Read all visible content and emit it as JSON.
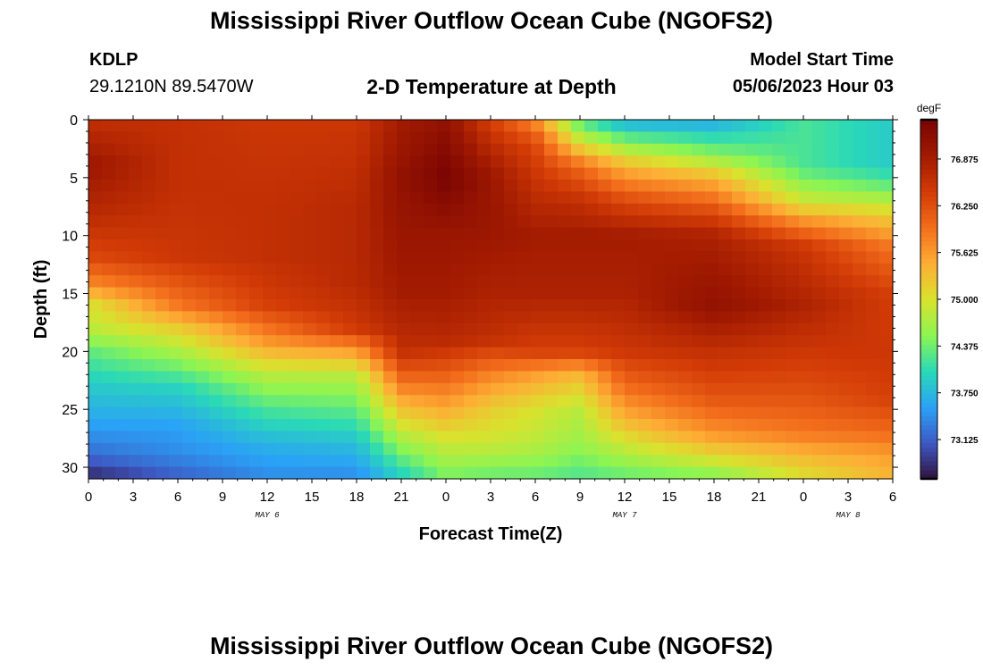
{
  "page": {
    "title": "Mississippi River Outflow Ocean Cube (NGOFS2)",
    "station": "KDLP",
    "coords": "29.1210N  89.5470W",
    "subtitle": "2-D Temperature at Depth",
    "model_start_label": "Model Start Time",
    "model_start_value": "05/06/2023 Hour 03",
    "repeat_title": "Mississippi River Outflow Ocean Cube (NGOFS2)"
  },
  "chart_data": {
    "type": "heatmap",
    "title": "2-D Temperature at Depth",
    "xlabel": "Forecast Time(Z)",
    "ylabel": "Depth (ft)",
    "colorbar_label": "degF",
    "x_tick_labels": [
      "0",
      "3",
      "6",
      "9",
      "12",
      "15",
      "18",
      "21",
      "0",
      "3",
      "6",
      "9",
      "12",
      "15",
      "18",
      "21",
      "0",
      "3",
      "6"
    ],
    "x_range_hours": [
      0,
      54
    ],
    "date_labels": [
      {
        "label": "MAY 6",
        "hour": 12
      },
      {
        "label": "MAY 7",
        "hour": 36
      },
      {
        "label": "MAY 8",
        "hour": 51
      }
    ],
    "y_ticks": [
      0,
      5,
      10,
      15,
      20,
      25,
      30
    ],
    "y_range": [
      0,
      31
    ],
    "y_inverted": true,
    "colorbar_ticks": [
      73.125,
      73.75,
      74.375,
      75.0,
      75.625,
      76.25,
      76.875
    ],
    "colorbar_tick_labels": [
      "73.125",
      "73.750",
      "74.375",
      "75.000",
      "75.625",
      "76.250",
      "76.875"
    ],
    "color_range": [
      72.6,
      77.4
    ],
    "colormap": [
      "#30123b",
      "#3e58c4",
      "#2aa2f6",
      "#2ad9b7",
      "#8cf552",
      "#d9e22e",
      "#fdae35",
      "#f36e1c",
      "#d23b06",
      "#a11a01",
      "#7a0403"
    ],
    "grid": false,
    "field": [
      {
        "hour": 0,
        "profile": [
          [
            0,
            76.6
          ],
          [
            4,
            77.0
          ],
          [
            8,
            76.7
          ],
          [
            12,
            76.3
          ],
          [
            14,
            75.8
          ],
          [
            16,
            75.0
          ],
          [
            18,
            74.8
          ],
          [
            20,
            74.3
          ],
          [
            23,
            73.9
          ],
          [
            26,
            73.6
          ],
          [
            29,
            73.2
          ],
          [
            31,
            72.7
          ]
        ]
      },
      {
        "hour": 6,
        "profile": [
          [
            0,
            76.6
          ],
          [
            6,
            76.6
          ],
          [
            12,
            76.5
          ],
          [
            16,
            75.9
          ],
          [
            18,
            75.2
          ],
          [
            20,
            74.7
          ],
          [
            23,
            74.0
          ],
          [
            26,
            73.6
          ],
          [
            29,
            73.4
          ],
          [
            31,
            73.1
          ]
        ]
      },
      {
        "hour": 12,
        "profile": [
          [
            0,
            76.5
          ],
          [
            7,
            76.6
          ],
          [
            12,
            76.6
          ],
          [
            16,
            76.4
          ],
          [
            19,
            75.7
          ],
          [
            22,
            74.8
          ],
          [
            25,
            74.2
          ],
          [
            28,
            73.7
          ],
          [
            31,
            73.4
          ]
        ]
      },
      {
        "hour": 18,
        "profile": [
          [
            0,
            76.5
          ],
          [
            8,
            76.7
          ],
          [
            14,
            76.7
          ],
          [
            18,
            76.5
          ],
          [
            20,
            75.6
          ],
          [
            22,
            74.8
          ],
          [
            25,
            74.3
          ],
          [
            28,
            73.8
          ],
          [
            31,
            73.4
          ]
        ]
      },
      {
        "hour": 21,
        "profile": [
          [
            0,
            76.9
          ],
          [
            5,
            77.1
          ],
          [
            10,
            77.0
          ],
          [
            15,
            76.9
          ],
          [
            20,
            76.6
          ],
          [
            22,
            76.1
          ],
          [
            25,
            75.3
          ],
          [
            28,
            74.6
          ],
          [
            31,
            73.9
          ]
        ]
      },
      {
        "hour": 24,
        "profile": [
          [
            0,
            77.1
          ],
          [
            5,
            77.4
          ],
          [
            10,
            77.0
          ],
          [
            15,
            76.9
          ],
          [
            19,
            76.7
          ],
          [
            22,
            76.1
          ],
          [
            25,
            75.5
          ],
          [
            28,
            74.9
          ],
          [
            31,
            74.4
          ]
        ]
      },
      {
        "hour": 27,
        "profile": [
          [
            0,
            76.4
          ],
          [
            5,
            77.0
          ],
          [
            9,
            77.0
          ],
          [
            15,
            76.8
          ],
          [
            19,
            76.6
          ],
          [
            22,
            75.8
          ],
          [
            25,
            75.2
          ],
          [
            28,
            74.9
          ],
          [
            31,
            74.3
          ]
        ]
      },
      {
        "hour": 30,
        "profile": [
          [
            0,
            75.7
          ],
          [
            2,
            76.3
          ],
          [
            6,
            76.6
          ],
          [
            10,
            76.9
          ],
          [
            15,
            76.8
          ],
          [
            20,
            76.4
          ],
          [
            22,
            75.6
          ],
          [
            25,
            75.0
          ],
          [
            28,
            74.8
          ],
          [
            31,
            74.3
          ]
        ]
      },
      {
        "hour": 33,
        "profile": [
          [
            0,
            74.2
          ],
          [
            2,
            75.0
          ],
          [
            4,
            76.0
          ],
          [
            7,
            76.6
          ],
          [
            10,
            76.9
          ],
          [
            15,
            76.8
          ],
          [
            20,
            76.4
          ],
          [
            22,
            75.4
          ],
          [
            25,
            74.8
          ],
          [
            28,
            74.6
          ],
          [
            31,
            74.2
          ]
        ]
      },
      {
        "hour": 36,
        "profile": [
          [
            0,
            73.6
          ],
          [
            2,
            74.5
          ],
          [
            4,
            75.4
          ],
          [
            7,
            76.3
          ],
          [
            10,
            76.9
          ],
          [
            15,
            76.8
          ],
          [
            20,
            76.5
          ],
          [
            23,
            76.0
          ],
          [
            26,
            75.4
          ],
          [
            29,
            74.7
          ],
          [
            31,
            74.3
          ]
        ]
      },
      {
        "hour": 42,
        "profile": [
          [
            0,
            73.6
          ],
          [
            3,
            74.5
          ],
          [
            5,
            75.4
          ],
          [
            8,
            76.3
          ],
          [
            10,
            76.8
          ],
          [
            16,
            77.1
          ],
          [
            20,
            76.6
          ],
          [
            24,
            76.2
          ],
          [
            27,
            75.7
          ],
          [
            29,
            75.1
          ],
          [
            31,
            74.4
          ]
        ]
      },
      {
        "hour": 48,
        "profile": [
          [
            0,
            74.2
          ],
          [
            4,
            74.2
          ],
          [
            7,
            74.9
          ],
          [
            9,
            75.8
          ],
          [
            11,
            76.5
          ],
          [
            16,
            76.8
          ],
          [
            20,
            76.5
          ],
          [
            24,
            76.2
          ],
          [
            27,
            75.9
          ],
          [
            29,
            75.4
          ],
          [
            31,
            75.0
          ]
        ]
      },
      {
        "hour": 54,
        "profile": [
          [
            0,
            73.9
          ],
          [
            4,
            73.9
          ],
          [
            6,
            74.4
          ],
          [
            8,
            75.1
          ],
          [
            11,
            75.9
          ],
          [
            15,
            76.4
          ],
          [
            20,
            76.5
          ],
          [
            24,
            76.4
          ],
          [
            27,
            76.0
          ],
          [
            29,
            75.6
          ],
          [
            31,
            75.4
          ]
        ]
      }
    ]
  }
}
